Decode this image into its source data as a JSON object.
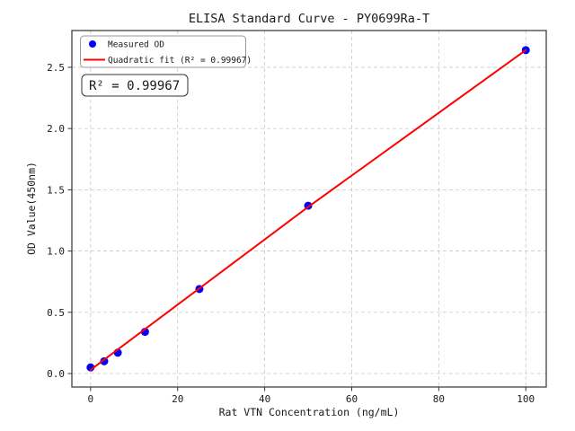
{
  "chart_data": {
    "type": "scatter",
    "title": "ELISA Standard Curve - PY0699Ra-T",
    "xlabel": "Rat VTN Concentration (ng/mL)",
    "ylabel": "OD Value(450nm)",
    "xlim": [
      -4.3,
      104.7
    ],
    "ylim": [
      -0.11,
      2.8
    ],
    "grid": true,
    "xticks": [
      0,
      20,
      40,
      60,
      80,
      100
    ],
    "xtick_labels": [
      "0",
      "20",
      "40",
      "60",
      "80",
      "100"
    ],
    "yticks": [
      0.0,
      0.5,
      1.0,
      1.5,
      2.0,
      2.5
    ],
    "ytick_labels": [
      "0.0",
      "0.5",
      "1.0",
      "1.5",
      "2.0",
      "2.5"
    ],
    "series": [
      {
        "name": "Measured OD",
        "kind": "scatter",
        "color": "#0000ff",
        "x": [
          0,
          3.125,
          6.25,
          12.5,
          25,
          50,
          100
        ],
        "y": [
          0.05,
          0.1,
          0.17,
          0.34,
          0.69,
          1.37,
          2.64
        ]
      },
      {
        "name": "Quadratic fit (R² = 0.99967)",
        "kind": "line",
        "color": "#ff0000",
        "x": [
          0,
          50,
          100
        ],
        "y": [
          0.03,
          1.36,
          2.64
        ]
      }
    ],
    "legend_position": "upper left",
    "annotation": "R² = 0.99967"
  },
  "colors": {
    "point": "#0000ff",
    "fit_line": "#ff0000",
    "grid": "#c9c9c9",
    "frame": "#333333",
    "background": "#ffffff"
  }
}
